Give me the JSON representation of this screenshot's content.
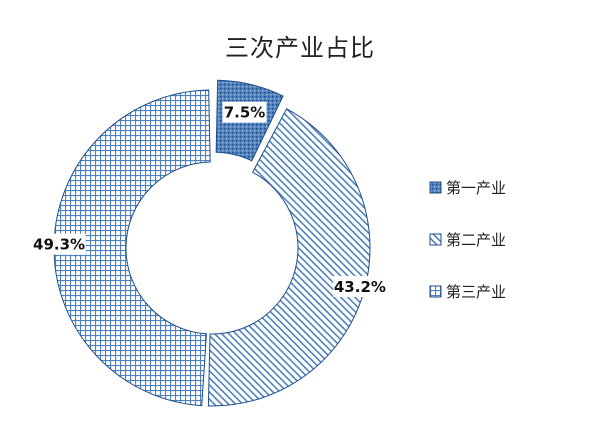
{
  "colors": {
    "accent": "#4F81BD",
    "outline": "#1F4E8C",
    "pattern_bg": "#ffffff",
    "label_bg": "#ffffff"
  },
  "chart_data": {
    "type": "pie",
    "variant": "donut",
    "title": "三次产业占比",
    "categories": [
      "第一产业",
      "第二产业",
      "第三产业"
    ],
    "values": [
      7.5,
      43.2,
      49.3
    ],
    "labels": [
      "7.5%",
      "43.2%",
      "49.3%"
    ],
    "patterns": [
      "dots",
      "diagonal-stripes",
      "grid"
    ],
    "legend": "right",
    "exploded_slice": "第一产业"
  }
}
